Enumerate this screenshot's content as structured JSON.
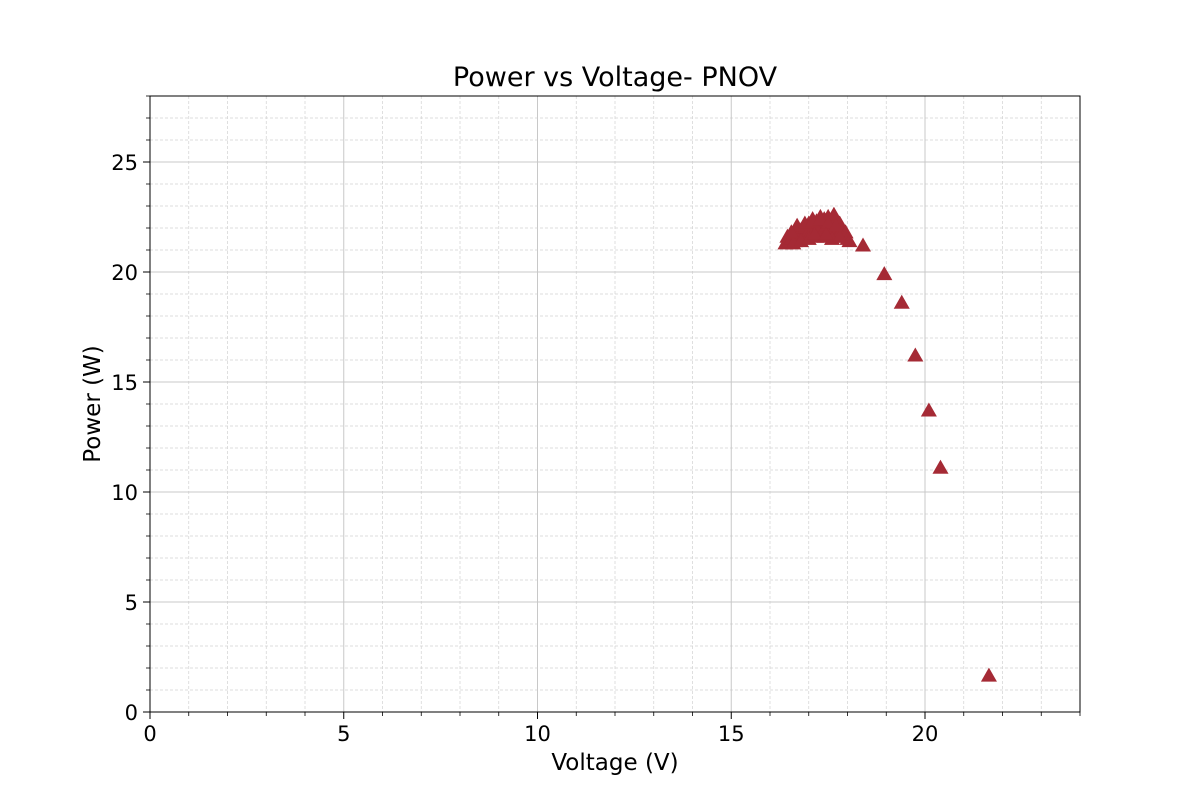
{
  "chart_data": {
    "type": "scatter",
    "title": "Power vs Voltage- PNOV",
    "xlabel": "Voltage (V)",
    "ylabel": "Power (W)",
    "xlim": [
      0,
      24
    ],
    "ylim": [
      0,
      28
    ],
    "xticks": [
      0,
      5,
      10,
      15,
      20
    ],
    "yticks": [
      0,
      5,
      10,
      15,
      20,
      25
    ],
    "xtick_labels": [
      "0",
      "5",
      "10",
      "15",
      "20"
    ],
    "ytick_labels": [
      "0",
      "5",
      "10",
      "15",
      "20",
      "25"
    ],
    "x_minor_step": 1,
    "y_minor_step": 1,
    "grid": true,
    "marker": "triangle",
    "color": "#a52a35",
    "series": [
      {
        "x": [
          16.4,
          16.45,
          16.5,
          16.55,
          16.6,
          16.65,
          16.7,
          16.75,
          16.8,
          16.85,
          16.9,
          16.95,
          17.0,
          17.05,
          17.1,
          17.15,
          17.2,
          17.25,
          17.3,
          17.35,
          17.4,
          17.45,
          17.5,
          17.55,
          17.6,
          17.65,
          17.7,
          17.75,
          17.8,
          17.85,
          17.9,
          17.95,
          18.0,
          16.6,
          16.8,
          17.0,
          17.2,
          17.4,
          17.6,
          17.8,
          16.7,
          16.9,
          17.1,
          17.3,
          17.5,
          17.7,
          16.55,
          17.15,
          17.45,
          18.05,
          18.4,
          18.95,
          19.4,
          19.75,
          20.1,
          20.4,
          21.65
        ],
        "y": [
          21.3,
          21.6,
          21.4,
          21.5,
          21.7,
          21.4,
          21.8,
          21.5,
          21.9,
          21.6,
          22.0,
          21.7,
          22.2,
          21.8,
          22.4,
          21.9,
          22.3,
          22.0,
          22.5,
          21.8,
          22.4,
          22.1,
          22.5,
          21.9,
          22.3,
          22.6,
          22.0,
          21.7,
          22.2,
          21.9,
          21.6,
          21.8,
          21.5,
          21.3,
          21.4,
          21.5,
          21.6,
          21.6,
          21.5,
          21.6,
          22.1,
          22.2,
          22.3,
          22.4,
          22.2,
          22.1,
          21.8,
          21.7,
          21.7,
          21.4,
          21.2,
          19.9,
          18.6,
          16.2,
          13.7,
          11.1,
          1.65
        ]
      }
    ]
  }
}
